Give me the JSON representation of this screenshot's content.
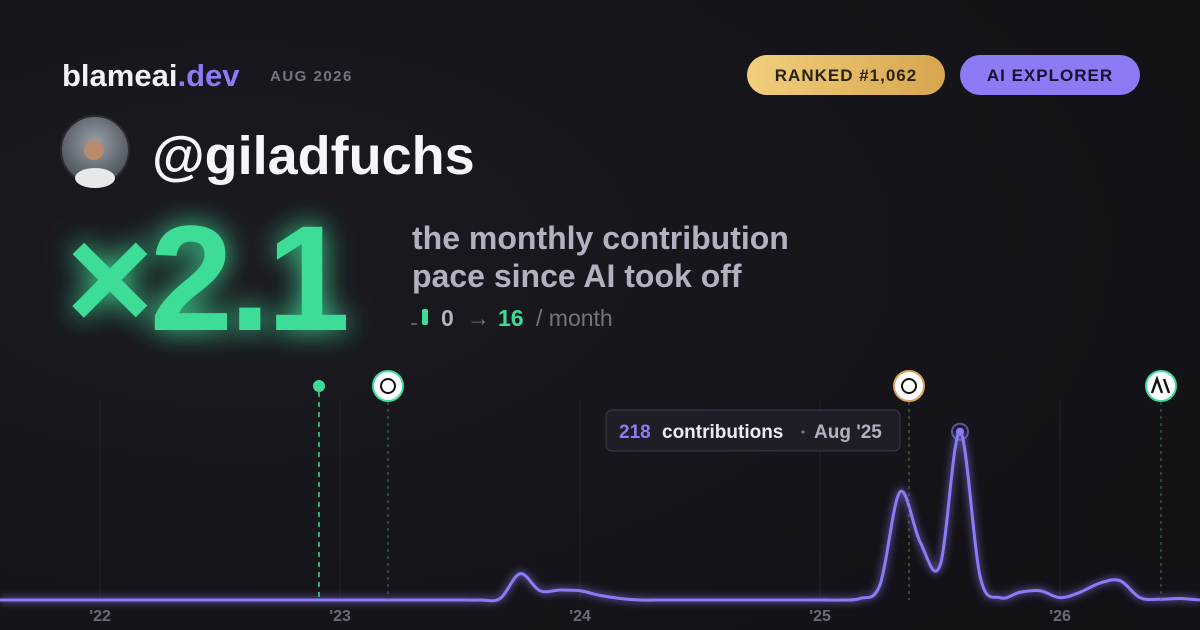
{
  "header": {
    "brand": "blameai",
    "brand_tld": ".dev",
    "date": "AUG 2026",
    "rank_badge": "RANKED #1,062",
    "tier_badge": "AI EXPLORER"
  },
  "profile": {
    "username": "@giladfuchs"
  },
  "stat": {
    "multiplier": "×2.1",
    "description": [
      "the monthly contribution",
      "pace since AI took off"
    ],
    "pace_from": 0,
    "arrow": "→",
    "pace_to": 16,
    "pace_unit": "/ month"
  },
  "tooltip": {
    "value": 218,
    "unit": "contributions",
    "date": "Aug '25"
  },
  "chart_data": {
    "type": "line",
    "x": [
      2021.583,
      2021.667,
      2021.75,
      2021.833,
      2021.917,
      2022,
      2022.083,
      2022.167,
      2022.25,
      2022.333,
      2022.417,
      2022.5,
      2022.583,
      2022.667,
      2022.75,
      2022.833,
      2022.917,
      2023,
      2023.083,
      2023.167,
      2023.25,
      2023.333,
      2023.417,
      2023.5,
      2023.583,
      2023.667,
      2023.75,
      2023.833,
      2023.917,
      2024,
      2024.083,
      2024.167,
      2024.25,
      2024.333,
      2024.417,
      2024.5,
      2024.583,
      2024.667,
      2024.75,
      2024.833,
      2024.917,
      2025,
      2025.083,
      2025.167,
      2025.25,
      2025.333,
      2025.417,
      2025.5,
      2025.583,
      2025.667,
      2025.75,
      2025.833,
      2025.917,
      2026,
      2026.083,
      2026.167,
      2026.25,
      2026.333,
      2026.417,
      2026.5,
      2026.583
    ],
    "values": [
      0,
      0,
      0,
      0,
      0,
      0,
      0,
      0,
      0,
      0,
      0,
      0,
      0,
      0,
      0,
      0,
      0,
      0,
      0,
      0,
      0,
      0,
      0,
      0,
      0,
      2,
      34,
      12,
      13,
      12,
      6,
      2,
      0,
      0,
      0,
      0,
      0,
      0,
      0,
      0,
      0,
      0,
      0,
      2,
      20,
      140,
      75,
      45,
      218,
      30,
      3,
      10,
      12,
      3,
      10,
      22,
      25,
      3,
      1,
      2,
      0
    ],
    "color": "#8b7cf6",
    "xlim": [
      2021.583,
      2026.583
    ],
    "ylim": [
      0,
      285
    ],
    "xticks": [
      {
        "value": 2022,
        "label": "'22"
      },
      {
        "value": 2023,
        "label": "'23"
      },
      {
        "value": 2024,
        "label": "'24"
      },
      {
        "value": 2025,
        "label": "'25"
      },
      {
        "value": 2026,
        "label": "'26"
      }
    ],
    "grid": true
  }
}
